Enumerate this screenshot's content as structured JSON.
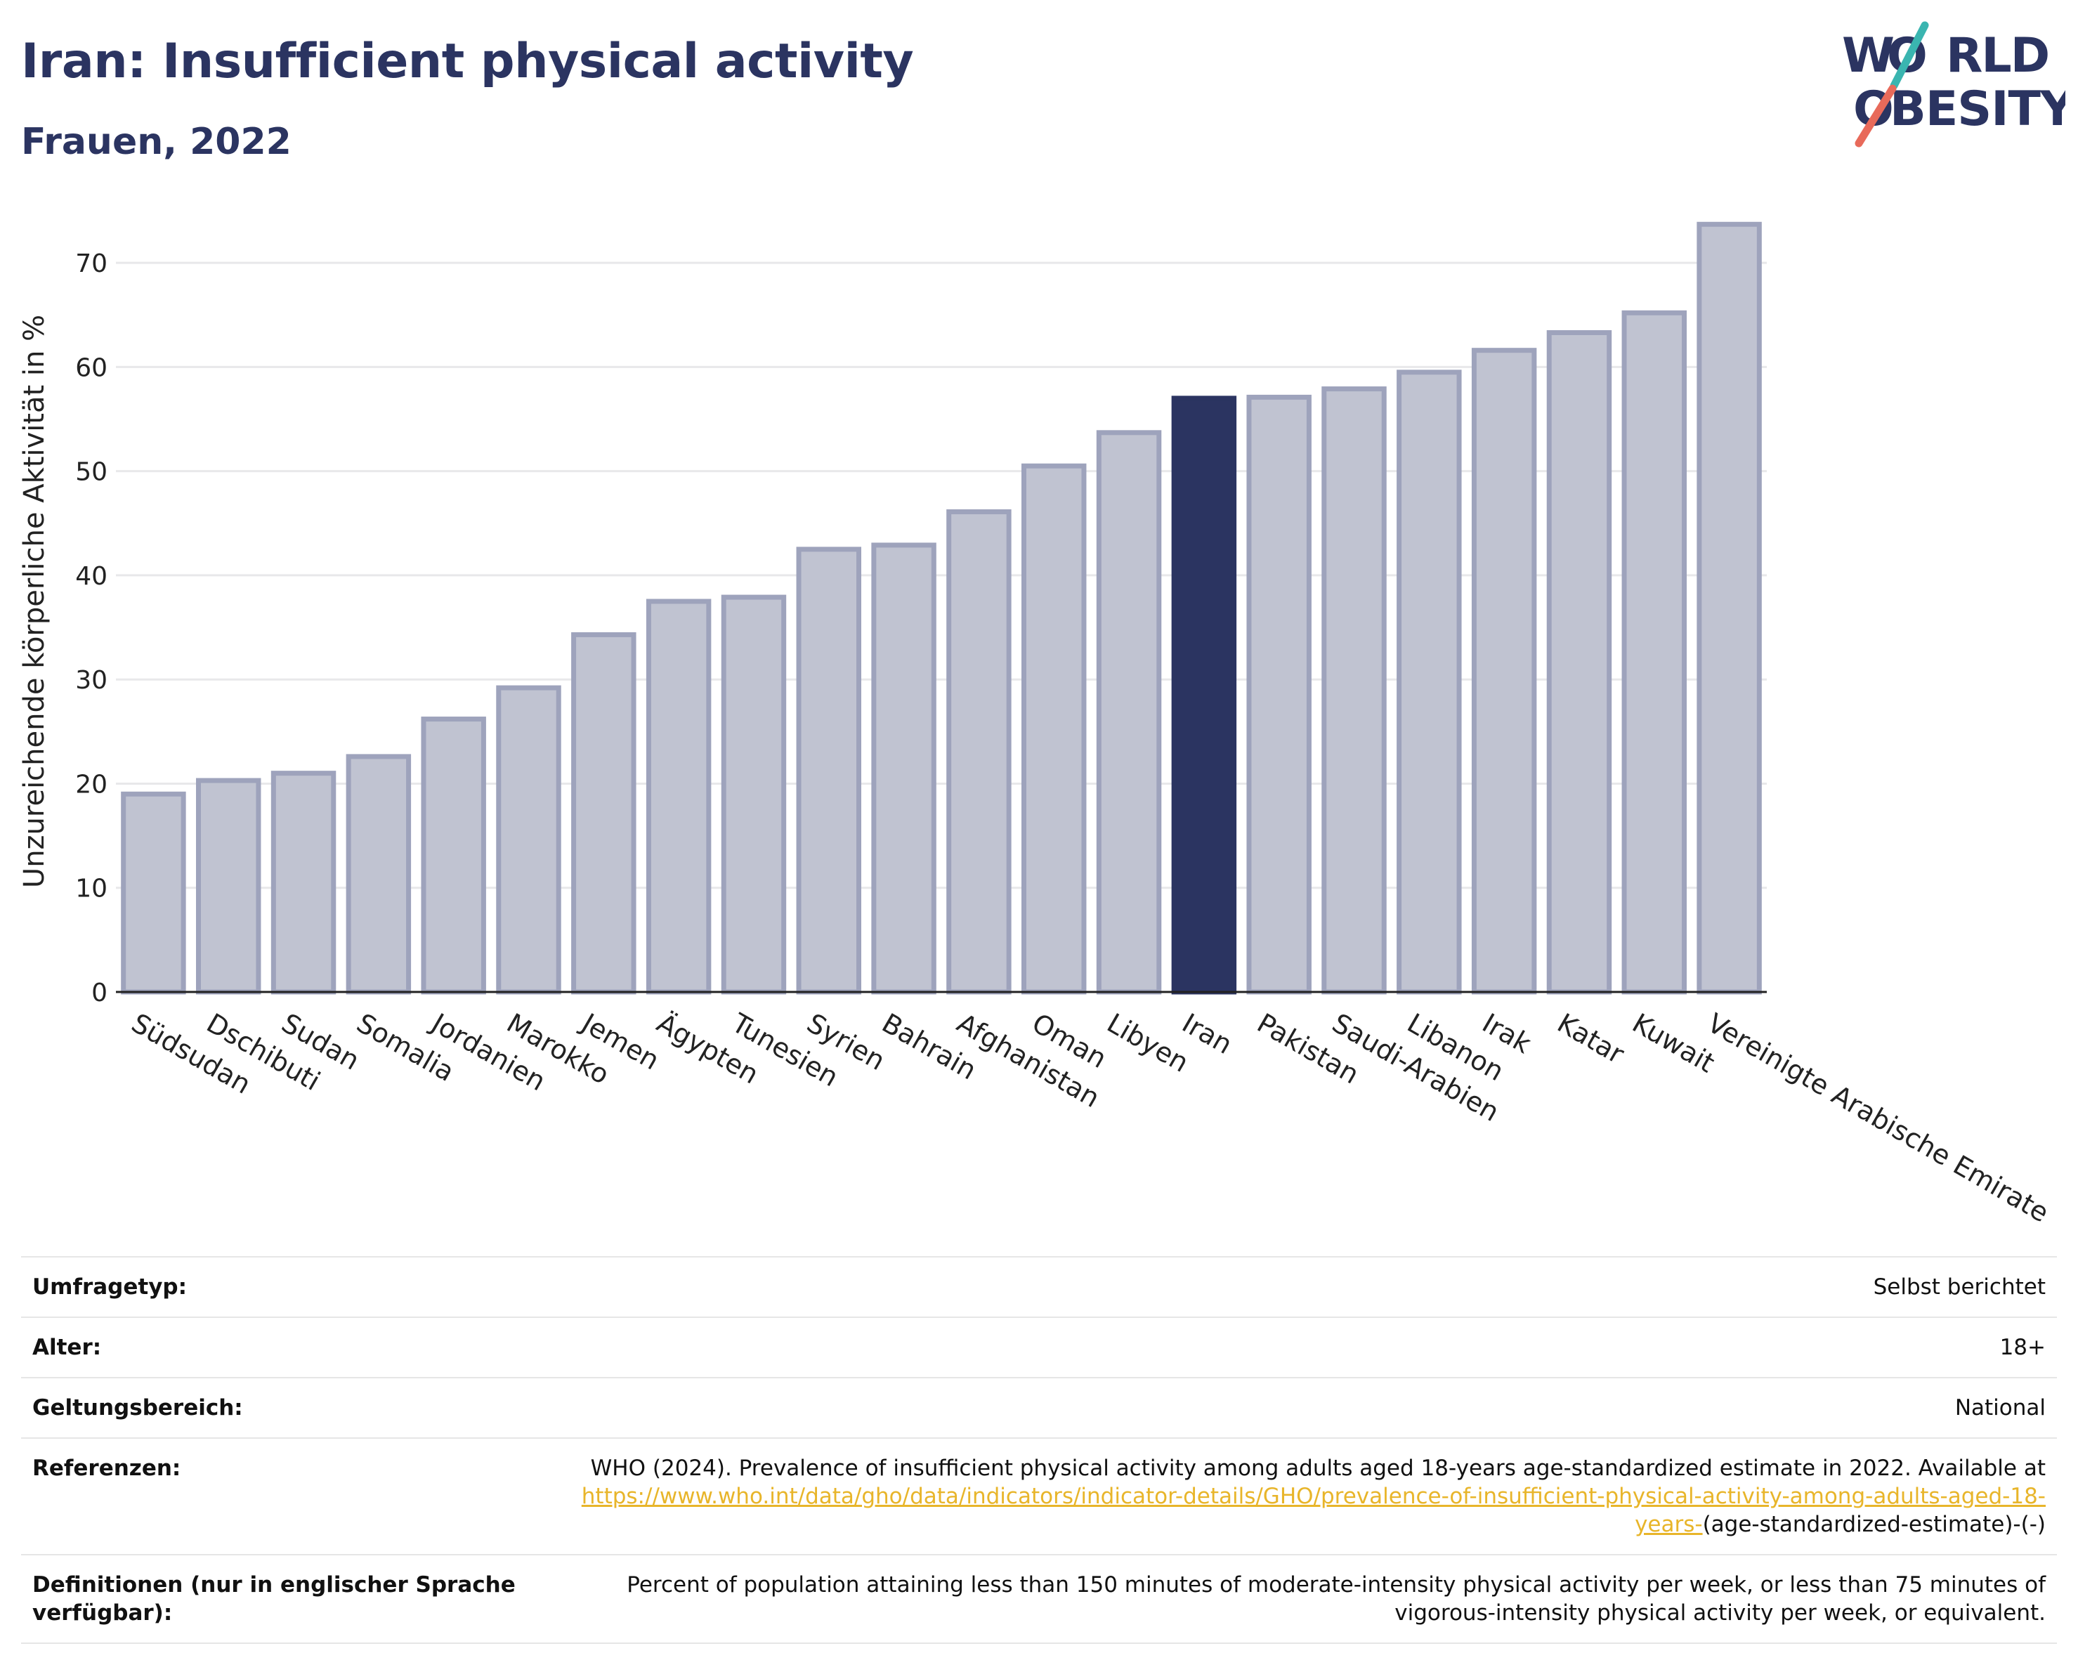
{
  "header": {
    "title": "Iran: Insufficient physical activity",
    "subtitle": "Frauen, 2022"
  },
  "logo": {
    "line1": "W RLD",
    "line2": "BESITY",
    "colors": {
      "text": "#2b3461",
      "slash_top": "#3ab5b0",
      "slash_bottom": "#e86a5a"
    }
  },
  "chart_data": {
    "type": "bar",
    "title": "",
    "xlabel": "",
    "ylabel": "Unzureichende körperliche Aktivität in %",
    "ylim": [
      0,
      75
    ],
    "yticks": [
      0,
      10,
      20,
      30,
      40,
      50,
      60,
      70
    ],
    "grid": true,
    "highlight_category": "Iran",
    "colors": {
      "bar": "#c0c3d1",
      "bar_stroke": "#9ea3bc",
      "highlight": "#2b3461"
    },
    "categories": [
      "Südsudan",
      "Dschibuti",
      "Sudan",
      "Somalia",
      "Jordanien",
      "Marokko",
      "Jemen",
      "Ägypten",
      "Tunesien",
      "Syrien",
      "Bahrain",
      "Afghanistan",
      "Oman",
      "Libyen",
      "Iran",
      "Pakistan",
      "Saudi-Arabien",
      "Libanon",
      "Irak",
      "Katar",
      "Kuwait",
      "Vereinigte Arabische Emirate"
    ],
    "values": [
      19.0,
      20.3,
      21.0,
      22.6,
      26.2,
      29.2,
      34.3,
      37.5,
      37.9,
      42.5,
      42.9,
      46.1,
      50.5,
      53.7,
      57.0,
      57.1,
      57.9,
      59.5,
      61.6,
      63.3,
      65.2,
      73.7
    ]
  },
  "info": {
    "rows": [
      {
        "label": "Umfragetyp:",
        "value": "Selbst berichtet"
      },
      {
        "label": "Alter:",
        "value": "18+"
      },
      {
        "label": "Geltungsbereich:",
        "value": "National"
      },
      {
        "label": "Referenzen:",
        "value_text": "WHO (2024). Prevalence of insufficient physical activity among adults aged 18-years age-standardized estimate in 2022. Available at",
        "value_link": "https://www.who.int/data/gho/data/indicators/indicator-details/GHO/prevalence-of-insufficient-physical-activity-among-adults-aged-18-years-",
        "value_suffix": "(age-standardized-estimate)-(-)"
      },
      {
        "label": "Definitionen (nur in englischer Sprache verfügbar):",
        "value": "Percent of population attaining less than 150 minutes of moderate-intensity physical activity per week, or less than 75 minutes of vigorous-intensity physical activity per week, or equivalent."
      }
    ]
  }
}
